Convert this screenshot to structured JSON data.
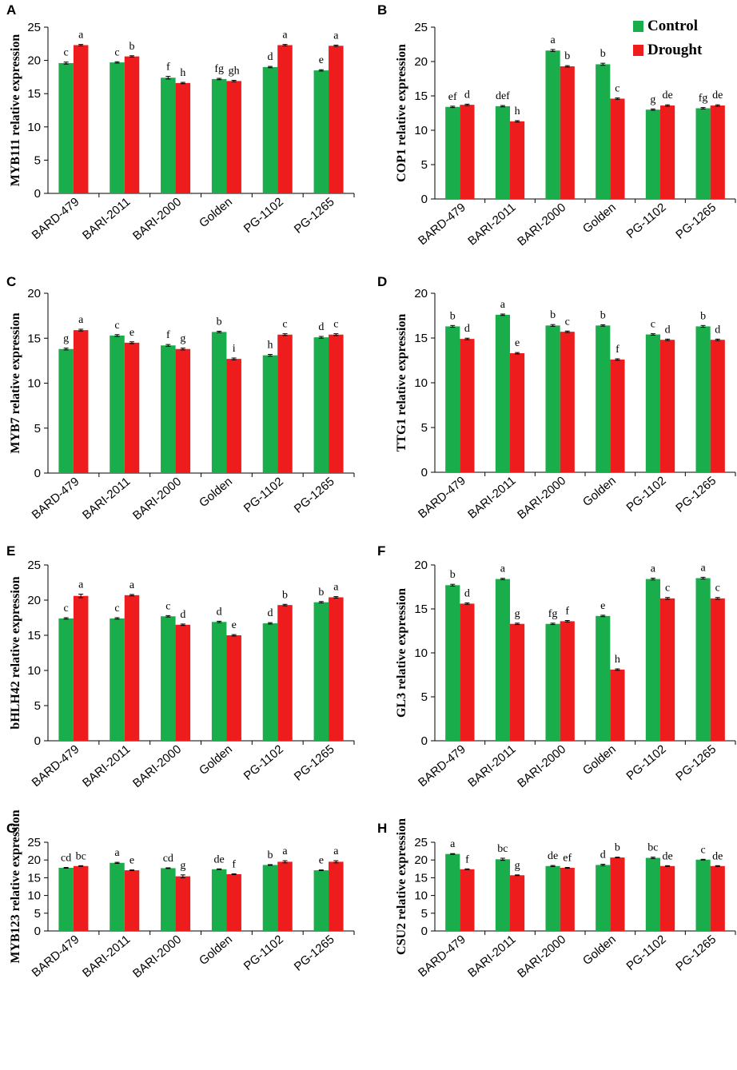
{
  "colors": {
    "control": "#1aad4b",
    "drought": "#ee1c1c"
  },
  "legend": {
    "control": "Control",
    "drought": "Drought"
  },
  "chart_data": [
    {
      "panel": "A",
      "type": "bar",
      "ylabel": "MYB111 relative expression",
      "ylim": [
        0,
        25
      ],
      "yticks": [
        0,
        5,
        10,
        15,
        20,
        25
      ],
      "categories": [
        "BARD-479",
        "BARI-2011",
        "BARI-2000",
        "Golden",
        "PG-1102",
        "PG-1265"
      ],
      "series": [
        {
          "name": "Control",
          "values": [
            19.6,
            19.7,
            17.4,
            17.2,
            19.0,
            18.5
          ],
          "errors": [
            0.15,
            0.1,
            0.2,
            0.1,
            0.1,
            0.1
          ],
          "letters": [
            "c",
            "c",
            "f",
            "fg",
            "d",
            "e"
          ]
        },
        {
          "name": "Drought",
          "values": [
            22.3,
            20.6,
            16.6,
            16.9,
            22.3,
            22.2
          ],
          "errors": [
            0.1,
            0.1,
            0.1,
            0.1,
            0.1,
            0.1
          ],
          "letters": [
            "a",
            "b",
            "h",
            "gh",
            "a",
            "a"
          ]
        }
      ]
    },
    {
      "panel": "B",
      "type": "bar",
      "ylabel": "COP1 relative expression",
      "ylim": [
        0,
        25
      ],
      "yticks": [
        0,
        5,
        10,
        15,
        20,
        25
      ],
      "categories": [
        "BARD-479",
        "BARI-2011",
        "BARI-2000",
        "Golden",
        "PG-1102",
        "PG-1265"
      ],
      "series": [
        {
          "name": "Control",
          "values": [
            13.4,
            13.5,
            21.6,
            19.6,
            13.0,
            13.2
          ],
          "errors": [
            0.1,
            0.1,
            0.15,
            0.15,
            0.1,
            0.1
          ],
          "letters": [
            "ef",
            "def",
            "a",
            "b",
            "g",
            "fg"
          ]
        },
        {
          "name": "Drought",
          "values": [
            13.7,
            11.3,
            19.3,
            14.6,
            13.6,
            13.6
          ],
          "errors": [
            0.1,
            0.1,
            0.1,
            0.1,
            0.1,
            0.1
          ],
          "letters": [
            "d",
            "h",
            "b",
            "c",
            "de",
            "de"
          ]
        }
      ]
    },
    {
      "panel": "C",
      "type": "bar",
      "ylabel": "MYB7 relative expression",
      "ylim": [
        0,
        20
      ],
      "yticks": [
        0,
        5,
        10,
        15,
        20
      ],
      "categories": [
        "BARD-479",
        "BARI-2011",
        "BARI-2000",
        "Golden",
        "PG-1102",
        "PG-1265"
      ],
      "series": [
        {
          "name": "Control",
          "values": [
            13.8,
            15.3,
            14.2,
            15.7,
            13.1,
            15.1
          ],
          "errors": [
            0.1,
            0.1,
            0.1,
            0.08,
            0.1,
            0.1
          ],
          "letters": [
            "g",
            "c",
            "f",
            "b",
            "h",
            "d"
          ]
        },
        {
          "name": "Drought",
          "values": [
            15.9,
            14.5,
            13.8,
            12.7,
            15.4,
            15.4
          ],
          "errors": [
            0.1,
            0.1,
            0.1,
            0.1,
            0.1,
            0.1
          ],
          "letters": [
            "a",
            "e",
            "g",
            "i",
            "c",
            "c"
          ]
        }
      ]
    },
    {
      "panel": "D",
      "type": "bar",
      "ylabel": "TTG1 relative expression",
      "ylim": [
        0,
        20
      ],
      "yticks": [
        0,
        5,
        10,
        15,
        20
      ],
      "categories": [
        "BARD-479",
        "BARI-2011",
        "BARI-2000",
        "Golden",
        "PG-1102",
        "PG-1265"
      ],
      "series": [
        {
          "name": "Control",
          "values": [
            16.3,
            17.6,
            16.4,
            16.4,
            15.4,
            16.3
          ],
          "errors": [
            0.1,
            0.08,
            0.1,
            0.08,
            0.08,
            0.1
          ],
          "letters": [
            "b",
            "a",
            "b",
            "b",
            "c",
            "b"
          ]
        },
        {
          "name": "Drought",
          "values": [
            14.9,
            13.3,
            15.7,
            12.6,
            14.8,
            14.8
          ],
          "errors": [
            0.08,
            0.08,
            0.08,
            0.08,
            0.08,
            0.08
          ],
          "letters": [
            "d",
            "e",
            "c",
            "f",
            "d",
            "d"
          ]
        }
      ]
    },
    {
      "panel": "E",
      "type": "bar",
      "ylabel": "bHLH42 relative expression",
      "ylim": [
        0,
        25
      ],
      "yticks": [
        0,
        5,
        10,
        15,
        20,
        25
      ],
      "categories": [
        "BARD-479",
        "BARI-2011",
        "BARI-2000",
        "Golden",
        "PG-1102",
        "PG-1265"
      ],
      "series": [
        {
          "name": "Control",
          "values": [
            17.4,
            17.4,
            17.7,
            16.9,
            16.7,
            19.7
          ],
          "errors": [
            0.1,
            0.1,
            0.1,
            0.1,
            0.1,
            0.1
          ],
          "letters": [
            "c",
            "c",
            "c",
            "d",
            "d",
            "b"
          ]
        },
        {
          "name": "Drought",
          "values": [
            20.6,
            20.7,
            16.5,
            15.0,
            19.3,
            20.4
          ],
          "errors": [
            0.25,
            0.1,
            0.1,
            0.1,
            0.1,
            0.1
          ],
          "letters": [
            "a",
            "a",
            "d",
            "e",
            "b",
            "a"
          ]
        }
      ]
    },
    {
      "panel": "F",
      "type": "bar",
      "ylabel": "GL3 relative expression",
      "ylim": [
        0,
        20
      ],
      "yticks": [
        0,
        5,
        10,
        15,
        20
      ],
      "categories": [
        "BARD-479",
        "BARI-2011",
        "BARI-2000",
        "Golden",
        "PG-1102",
        "PG-1265"
      ],
      "series": [
        {
          "name": "Control",
          "values": [
            17.7,
            18.4,
            13.3,
            14.2,
            18.4,
            18.5
          ],
          "errors": [
            0.1,
            0.08,
            0.08,
            0.08,
            0.1,
            0.1
          ],
          "letters": [
            "b",
            "a",
            "fg",
            "e",
            "a",
            "a"
          ]
        },
        {
          "name": "Drought",
          "values": [
            15.6,
            13.3,
            13.6,
            8.1,
            16.2,
            16.2
          ],
          "errors": [
            0.08,
            0.08,
            0.08,
            0.08,
            0.1,
            0.1
          ],
          "letters": [
            "d",
            "g",
            "f",
            "h",
            "c",
            "c"
          ]
        }
      ]
    },
    {
      "panel": "G",
      "type": "bar",
      "ylabel": "MYB123 relative expression",
      "ylim": [
        0,
        25
      ],
      "yticks": [
        0,
        5,
        10,
        15,
        20,
        25
      ],
      "categories": [
        "BARD-479",
        "BARI-2011",
        "BARI-2000",
        "Golden",
        "PG-1102",
        "PG-1265"
      ],
      "series": [
        {
          "name": "Control",
          "values": [
            17.8,
            19.2,
            17.7,
            17.4,
            18.6,
            17.1
          ],
          "errors": [
            0.1,
            0.15,
            0.1,
            0.1,
            0.1,
            0.1
          ],
          "letters": [
            "cd",
            "a",
            "cd",
            "de",
            "b",
            "e"
          ]
        },
        {
          "name": "Drought",
          "values": [
            18.3,
            17.1,
            15.4,
            16.0,
            19.5,
            19.5
          ],
          "errors": [
            0.1,
            0.1,
            0.4,
            0.1,
            0.3,
            0.3
          ],
          "letters": [
            "bc",
            "e",
            "g",
            "f",
            "a",
            "a"
          ]
        }
      ]
    },
    {
      "panel": "H",
      "type": "bar",
      "ylabel": "CSU2 relative expression",
      "ylim": [
        0,
        25
      ],
      "yticks": [
        0,
        5,
        10,
        15,
        20,
        25
      ],
      "categories": [
        "BARD-479",
        "BARI-2011",
        "BARI-2000",
        "Golden",
        "PG-1102",
        "PG-1265"
      ],
      "series": [
        {
          "name": "Control",
          "values": [
            21.7,
            20.2,
            18.3,
            18.6,
            20.6,
            20.1
          ],
          "errors": [
            0.1,
            0.3,
            0.15,
            0.2,
            0.2,
            0.1
          ],
          "letters": [
            "a",
            "bc",
            "de",
            "d",
            "bc",
            "c"
          ]
        },
        {
          "name": "Drought",
          "values": [
            17.4,
            15.7,
            17.8,
            20.7,
            18.3,
            18.3
          ],
          "errors": [
            0.1,
            0.1,
            0.1,
            0.1,
            0.1,
            0.1
          ],
          "letters": [
            "f",
            "g",
            "ef",
            "b",
            "de",
            "de"
          ]
        }
      ]
    }
  ]
}
